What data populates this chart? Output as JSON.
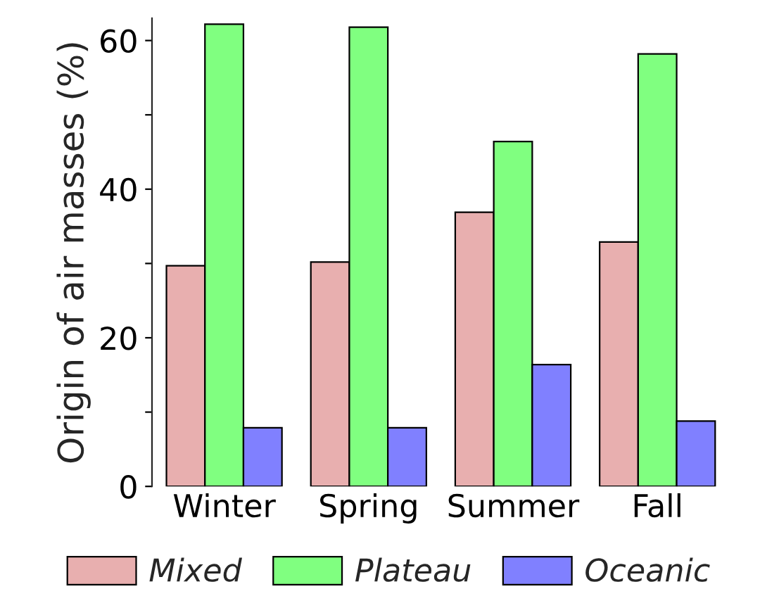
{
  "chart_data": {
    "type": "bar",
    "ylabel": "Origin of air masses (%)",
    "categories": [
      "Winter",
      "Spring",
      "Summer",
      "Fall"
    ],
    "series": [
      {
        "name": "Mixed",
        "color": "#e8afaf",
        "values": [
          29.7,
          30.2,
          36.9,
          32.9
        ]
      },
      {
        "name": "Plateau",
        "color": "#80ff80",
        "values": [
          62.2,
          61.8,
          46.4,
          58.2
        ]
      },
      {
        "name": "Oceanic",
        "color": "#8080ff",
        "values": [
          7.9,
          7.9,
          16.4,
          8.8
        ]
      }
    ],
    "ylim": [
      0,
      63
    ],
    "yticks": [
      0,
      {
        "value": 10,
        "label": null
      },
      20,
      {
        "value": 30,
        "label": null
      },
      40,
      {
        "value": 50,
        "label": null
      },
      60
    ],
    "grid": false,
    "legend": "bottom"
  }
}
